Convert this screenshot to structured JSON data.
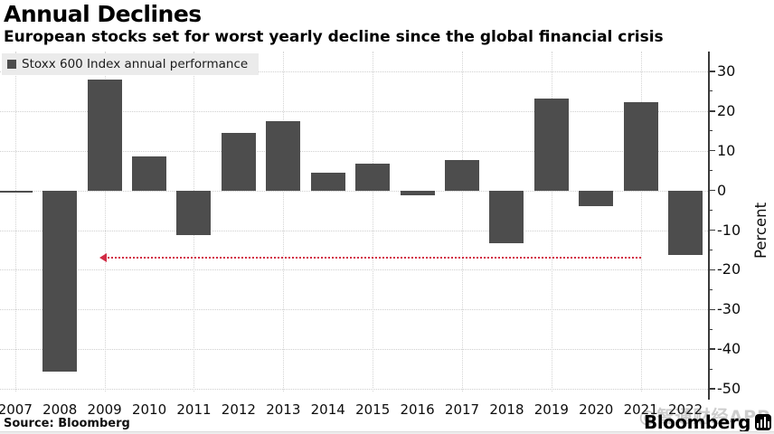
{
  "header": {
    "title": "Annual Declines",
    "subtitle": "European stocks set for worst yearly decline since the global financial crisis"
  },
  "legend": {
    "label": "Stoxx 600 Index annual performance",
    "swatch_color": "#4d4d4d"
  },
  "chart_data": {
    "type": "bar",
    "title": "Annual Declines",
    "series_name": "Stoxx 600 Index annual performance",
    "categories": [
      "2007",
      "2008",
      "2009",
      "2010",
      "2011",
      "2012",
      "2013",
      "2014",
      "2015",
      "2016",
      "2017",
      "2018",
      "2019",
      "2020",
      "2021",
      "2022"
    ],
    "values": [
      -0.2,
      -45.6,
      28.0,
      8.6,
      -11.3,
      14.4,
      17.4,
      4.4,
      6.8,
      -1.2,
      7.7,
      -13.2,
      23.2,
      -4.0,
      22.2,
      -16.3
    ],
    "xlabel": "",
    "ylabel": "Percent",
    "ylim": [
      -53,
      35
    ],
    "yticks": [
      30,
      20,
      10,
      0,
      -10,
      -20,
      -30,
      -40,
      -50
    ],
    "grid": "dotted horizontal at every 10 percent; dotted vertical at odd years",
    "legend_position": "top-left",
    "axis_side": "right",
    "bar_color": "#4d4d4d",
    "annotation": {
      "type": "dotted-line-with-left-arrow",
      "value": -17,
      "from_year": "2009",
      "to_year": "2021",
      "color": "#d22b45"
    }
  },
  "footer": {
    "source": "Source: Bloomberg",
    "brand": "Bloomberg",
    "watermark": "@智通财经APP"
  },
  "colors": {
    "bar": "#4d4d4d",
    "legend_bg": "#ebebeb",
    "grid": "#cfcfcf",
    "annotation_red": "#d22b45",
    "text": "#000000"
  }
}
